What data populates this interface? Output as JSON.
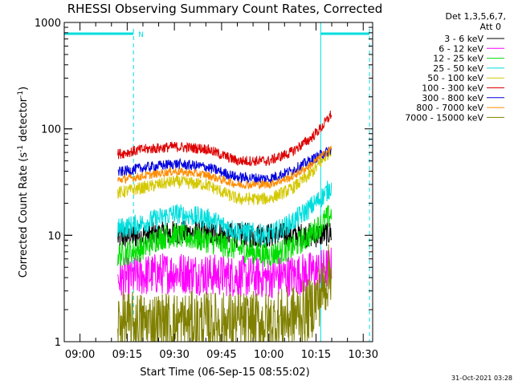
{
  "chart_data": {
    "type": "line",
    "title": "RHESSI Observing Summary Count Rates, Corrected",
    "xlabel": "Start Time (06-Sep-15 08:55:02)",
    "ylabel_main": "Corrected Count Rate (s",
    "ylabel_exp1": "-1",
    "ylabel_mid": " detector",
    "ylabel_exp2": "-1",
    "ylabel_close": ")",
    "yscale": "log",
    "ylim": [
      1,
      1000
    ],
    "x_tick_labels": [
      "09:00",
      "09:15",
      "09:30",
      "09:45",
      "10:00",
      "10:15",
      "10:30"
    ],
    "x_tick_minutes": [
      5,
      20,
      35,
      50,
      65,
      80,
      95
    ],
    "xlim_minutes": [
      0,
      98
    ],
    "y_tick_labels": [
      "1",
      "10",
      "100",
      "1000"
    ],
    "y_tick_values": [
      1,
      10,
      100,
      1000
    ],
    "legend_header": [
      "Det 1,3,5,6,7,",
      "Att 0"
    ],
    "legend_position": "right",
    "footer_date": "31-Oct-2021 03:28",
    "night_flag_label": "N",
    "flag_intervals_minutes": [
      [
        0,
        22
      ],
      [
        81.5,
        97
      ]
    ],
    "dashed_markers_minutes": [
      22,
      97
    ],
    "solid_markers_minutes": [
      0,
      81.5
    ],
    "series": [
      {
        "name": "3 - 6 keV",
        "color": "#000000",
        "x": [
          17,
          25,
          35,
          45,
          55,
          65,
          75,
          80,
          85
        ],
        "y": [
          9.5,
          10,
          10.5,
          10.5,
          10,
          10,
          10,
          10,
          10.5
        ],
        "noise": 0.12
      },
      {
        "name": "6 - 12 keV",
        "color": "#ff00ff",
        "x": [
          17,
          25,
          35,
          45,
          55,
          65,
          75,
          80,
          85
        ],
        "y": [
          3.8,
          4.2,
          4.5,
          4.3,
          4.1,
          4.0,
          4.3,
          4.6,
          5
        ],
        "noise": 0.2
      },
      {
        "name": "12 - 25 keV",
        "color": "#00dd00",
        "x": [
          17,
          25,
          30,
          35,
          45,
          55,
          65,
          72,
          78,
          82,
          85
        ],
        "y": [
          6.5,
          7.5,
          9.5,
          10,
          9,
          7.5,
          6.5,
          7.5,
          10,
          13,
          16
        ],
        "noise": 0.12
      },
      {
        "name": "25 - 50 keV",
        "color": "#00dddd",
        "x": [
          17,
          25,
          35,
          45,
          55,
          65,
          72,
          78,
          82,
          85
        ],
        "y": [
          11.5,
          13,
          16,
          14.5,
          11,
          10,
          13,
          18,
          23,
          29
        ],
        "noise": 0.1
      },
      {
        "name": "50 - 100 keV",
        "color": "#d4c800",
        "x": [
          17,
          25,
          35,
          45,
          55,
          65,
          72,
          78,
          82,
          85
        ],
        "y": [
          25,
          28,
          32,
          30,
          22,
          22,
          27,
          37,
          50,
          65
        ],
        "noise": 0.06
      },
      {
        "name": "100 - 300 keV",
        "color": "#dd0000",
        "x": [
          17,
          25,
          35,
          45,
          55,
          65,
          72,
          78,
          82,
          85
        ],
        "y": [
          58,
          64,
          68,
          65,
          50,
          50,
          60,
          80,
          105,
          140
        ],
        "noise": 0.05
      },
      {
        "name": "300 - 800 keV",
        "color": "#0000dd",
        "x": [
          17,
          25,
          35,
          45,
          55,
          65,
          72,
          78,
          82,
          85
        ],
        "y": [
          39,
          43,
          47,
          44,
          35,
          34,
          40,
          50,
          58,
          64
        ],
        "noise": 0.05
      },
      {
        "name": "800 - 7000 keV",
        "color": "#ff8c00",
        "x": [
          17,
          25,
          35,
          45,
          55,
          65,
          72,
          78,
          82,
          85
        ],
        "y": [
          33,
          36,
          40,
          37,
          30,
          30,
          35,
          45,
          56,
          66
        ],
        "noise": 0.04
      },
      {
        "name": "7000 - 15000 keV",
        "color": "#808000",
        "x": [
          17,
          25,
          35,
          45,
          55,
          65,
          72,
          78,
          82,
          85
        ],
        "y": [
          1.5,
          1.5,
          1.5,
          1.5,
          1.5,
          1.5,
          1.7,
          2,
          3,
          5
        ],
        "noise": 0.3
      }
    ]
  }
}
